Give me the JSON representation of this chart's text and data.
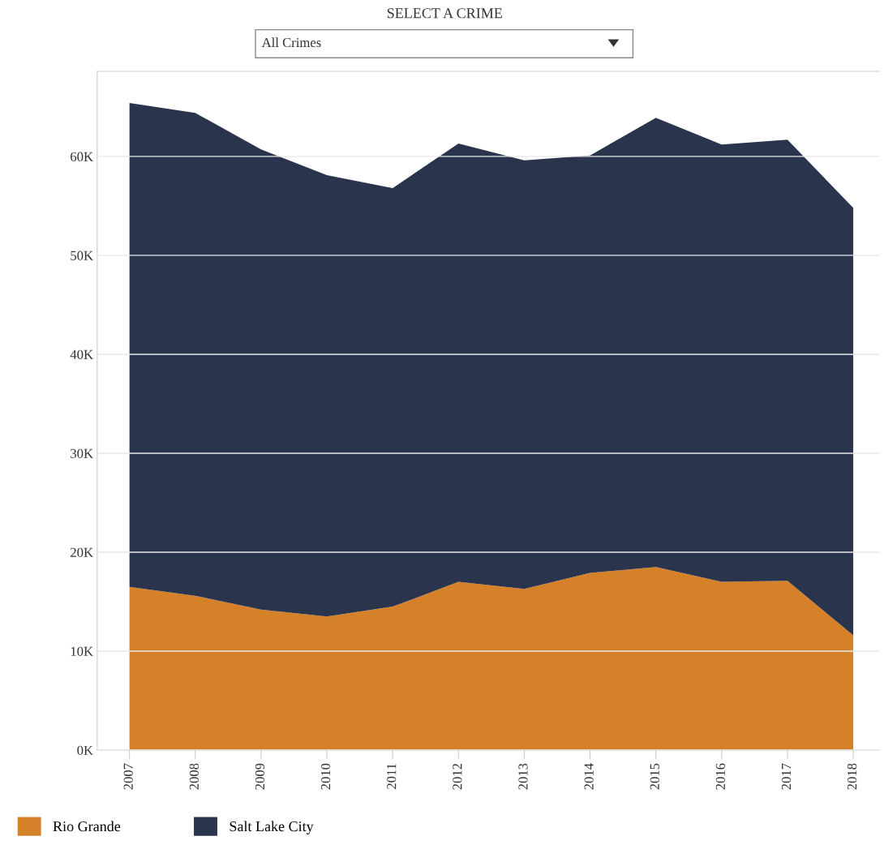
{
  "chart_data": {
    "type": "area",
    "title": "SELECT A CRIME",
    "annotations": [
      "All Crimes"
    ],
    "categories": [
      "2007",
      "2008",
      "2009",
      "2010",
      "2011",
      "2012",
      "2013",
      "2014",
      "2015",
      "2016",
      "2017",
      "2018"
    ],
    "stacked": true,
    "series": [
      {
        "name": "Rio Grande",
        "color": "#d4812a",
        "values": [
          16500,
          15600,
          14200,
          13500,
          14500,
          17000,
          16300,
          17900,
          18500,
          17000,
          17100,
          11600
        ]
      },
      {
        "name": "Salt Lake City",
        "color": "#2a354d",
        "values": [
          48900,
          48800,
          46500,
          44600,
          42300,
          44300,
          43300,
          42200,
          45400,
          44200,
          44600,
          43200
        ]
      }
    ],
    "ylim": [
      0,
      68600
    ],
    "yticks": [
      {
        "value": 0,
        "label": "0K"
      },
      {
        "value": 10000,
        "label": "10K"
      },
      {
        "value": 20000,
        "label": "20K"
      },
      {
        "value": 30000,
        "label": "30K"
      },
      {
        "value": 40000,
        "label": "40K"
      },
      {
        "value": 50000,
        "label": "50K"
      },
      {
        "value": 60000,
        "label": "60K"
      }
    ],
    "grid": "y",
    "legend": "bottom left"
  }
}
